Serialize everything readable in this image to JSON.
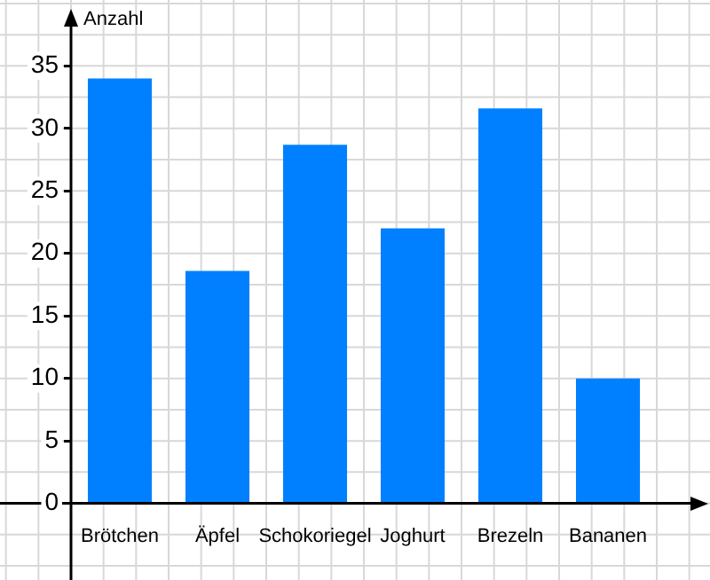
{
  "chart_data": {
    "type": "bar",
    "ylabel": "Anzahl",
    "categories": [
      "Brötchen",
      "Äpfel",
      "Schokoriegel",
      "Joghurt",
      "Brezeln",
      "Bananen"
    ],
    "values": [
      34,
      18.6,
      28.7,
      22,
      31.6,
      10
    ],
    "color": "#0080ff",
    "ylim": [
      0,
      39
    ],
    "yticks": [
      0,
      5,
      10,
      15,
      20,
      25,
      30,
      35
    ],
    "grid": true
  }
}
